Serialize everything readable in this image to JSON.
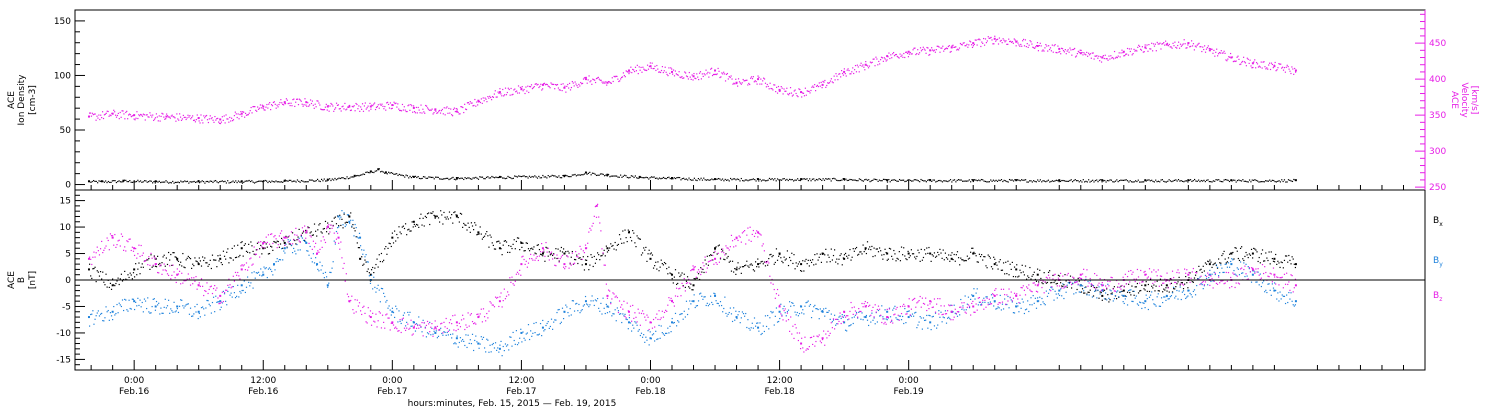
{
  "chart_data": [
    {
      "type": "scatter",
      "panel": "top",
      "ylabel_left_lines": [
        "ACE",
        "Ion Density",
        "[cm-3]"
      ],
      "ylabel_right_lines": [
        "ACE",
        "Velocity",
        "[km/s]"
      ],
      "ylim_left": [
        -5,
        160
      ],
      "yticks_left": [
        "0",
        "50",
        "100",
        "150"
      ],
      "ylim_right": [
        246,
        496
      ],
      "yticks_right": [
        "250",
        "300",
        "350",
        "400",
        "450"
      ],
      "colors": {
        "density": "#000000",
        "velocity": "#e61ee6"
      },
      "series": [
        {
          "axis": "left",
          "color": "#000000",
          "x_hours": [
            -4.2,
            -3,
            -1,
            2,
            6,
            10,
            14,
            18,
            20.5,
            22,
            22.7,
            23.4,
            26,
            30,
            34,
            40,
            42,
            44,
            47,
            50,
            54,
            58,
            62,
            66,
            70,
            74,
            78,
            82,
            86,
            90,
            94,
            98,
            102,
            108
          ],
          "values": [
            3,
            3,
            3.5,
            3,
            3,
            3,
            3.5,
            4.5,
            8,
            12,
            14,
            11,
            7,
            6,
            7,
            8,
            11,
            9,
            7,
            6,
            5,
            5,
            5,
            5,
            4,
            4,
            4,
            4,
            4,
            4,
            4,
            4,
            4,
            4
          ]
        },
        {
          "axis": "right",
          "color": "#e61ee6",
          "x_hours": [
            -4.2,
            -2,
            0,
            3,
            6,
            8,
            10,
            12,
            14,
            16,
            18,
            20,
            22,
            24,
            26,
            28,
            30,
            32,
            34,
            36,
            38,
            40,
            42,
            44,
            46,
            48,
            50,
            52,
            54,
            56,
            58,
            60,
            62,
            64,
            66,
            68,
            70,
            72,
            74,
            76,
            78,
            80,
            82,
            84,
            86,
            88,
            90,
            92,
            94,
            96,
            98,
            100,
            102,
            104,
            106,
            108
          ],
          "values": [
            348,
            352,
            350,
            348,
            346,
            344,
            352,
            362,
            368,
            368,
            362,
            362,
            362,
            364,
            360,
            358,
            355,
            370,
            382,
            386,
            392,
            388,
            400,
            395,
            412,
            418,
            410,
            404,
            412,
            395,
            400,
            385,
            382,
            392,
            410,
            420,
            432,
            438,
            440,
            444,
            450,
            456,
            452,
            446,
            442,
            436,
            430,
            438,
            444,
            448,
            450,
            440,
            430,
            422,
            418,
            412
          ]
        }
      ]
    },
    {
      "type": "scatter",
      "panel": "bottom",
      "ylabel_lines": [
        "ACE",
        "B",
        "[nT]"
      ],
      "ylim": [
        -17,
        17
      ],
      "yticks": [
        "15",
        "10",
        "5",
        "0",
        "-5",
        "-10",
        "-15"
      ],
      "colors": {
        "Bx": "#000000",
        "By": "#1e82dc",
        "Bz": "#e61ee6"
      },
      "series": [
        {
          "name": "Bx",
          "color": "#000000",
          "x_hours": [
            -4.2,
            -2,
            0,
            2,
            4,
            6,
            8,
            10,
            12,
            14,
            16,
            18,
            20,
            21,
            22,
            24,
            26,
            28,
            30,
            32,
            34,
            36,
            38,
            40,
            42,
            44,
            46,
            48,
            50,
            52,
            54,
            56,
            58,
            60,
            62,
            64,
            66,
            68,
            70,
            72,
            74,
            76,
            78,
            80,
            82,
            84,
            86,
            88,
            90,
            92,
            94,
            96,
            98,
            100,
            102,
            104,
            106,
            108
          ],
          "values": [
            2,
            -1,
            2,
            4,
            4,
            3,
            4,
            6,
            6,
            7,
            9,
            10,
            12,
            4,
            1,
            8,
            11,
            12,
            12,
            9,
            6,
            7,
            5,
            5,
            3,
            6,
            9,
            4,
            1,
            -1,
            6,
            2,
            3,
            5,
            3,
            5,
            4,
            6,
            5,
            5,
            5,
            4,
            5,
            3,
            2,
            1,
            0,
            -1,
            -3,
            -2,
            -1,
            -1,
            0,
            3,
            5,
            5,
            4,
            3
          ]
        },
        {
          "name": "By",
          "color": "#1e82dc",
          "x_hours": [
            -4.2,
            -2,
            0,
            2,
            4,
            6,
            8,
            10,
            12,
            13,
            14,
            16,
            17,
            18,
            19,
            20,
            21,
            22,
            24,
            26,
            28,
            30,
            32,
            34,
            36,
            38,
            40,
            42,
            44,
            46,
            48,
            50,
            52,
            54,
            56,
            58,
            60,
            62,
            64,
            66,
            68,
            70,
            72,
            74,
            76,
            78,
            80,
            82,
            84,
            86,
            88,
            90,
            92,
            94,
            96,
            98,
            100,
            102,
            104,
            106,
            108
          ],
          "values": [
            -7,
            -6,
            -4,
            -5,
            -5,
            -6,
            -4,
            -1,
            1,
            3,
            6,
            7,
            3,
            -1,
            12,
            11,
            8,
            0,
            -6,
            -8,
            -10,
            -11,
            -12,
            -13,
            -10,
            -9,
            -6,
            -4,
            -5,
            -8,
            -11,
            -8,
            -4,
            -3,
            -7,
            -9,
            -6,
            -5,
            -6,
            -8,
            -7,
            -6,
            -7,
            -8,
            -6,
            -3,
            -4,
            -5,
            -4,
            -2,
            -1,
            -2,
            -3,
            -4,
            -3,
            -2,
            1,
            3,
            1,
            -2,
            -4
          ]
        },
        {
          "name": "Bz",
          "color": "#e61ee6",
          "x_hours": [
            -4.2,
            -2,
            0,
            2,
            4,
            6,
            8,
            10,
            12,
            14,
            16,
            17,
            18,
            19,
            20,
            22,
            24,
            26,
            28,
            30,
            32,
            34,
            36,
            38,
            40,
            42,
            43,
            44,
            46,
            48,
            50,
            52,
            54,
            56,
            58,
            60,
            62,
            64,
            66,
            68,
            70,
            72,
            74,
            76,
            78,
            80,
            82,
            84,
            86,
            88,
            90,
            92,
            94,
            96,
            98,
            100,
            102,
            104,
            106,
            108
          ],
          "values": [
            4,
            8,
            6,
            3,
            1,
            -1,
            -3,
            2,
            7,
            8,
            9,
            5,
            10,
            8,
            -4,
            -7,
            -8,
            -9,
            -9,
            -8,
            -7,
            -4,
            3,
            6,
            3,
            6,
            14,
            -3,
            -6,
            -8,
            -4,
            2,
            4,
            8,
            9,
            -5,
            -12,
            -11,
            -6,
            -5,
            -7,
            -5,
            -4,
            -6,
            -5,
            -3,
            -3,
            -1,
            0,
            1,
            -1,
            0,
            1,
            0,
            1,
            0,
            0,
            2,
            1,
            -1
          ]
        }
      ],
      "legend": [
        "Bx",
        "By",
        "Bz"
      ]
    }
  ],
  "x_axis": {
    "range_hours": [
      -5.5,
      120
    ],
    "ticks": [
      {
        "h": 0,
        "time": "0:00",
        "date": "Feb.16"
      },
      {
        "h": 12,
        "time": "12:00",
        "date": "Feb.16"
      },
      {
        "h": 24,
        "time": "0:00",
        "date": "Feb.17"
      },
      {
        "h": 36,
        "time": "12:00",
        "date": "Feb.17"
      },
      {
        "h": 48,
        "time": "0:00",
        "date": "Feb.18"
      },
      {
        "h": 60,
        "time": "12:00",
        "date": "Feb.18"
      },
      {
        "h": 72,
        "time": "0:00",
        "date": "Feb.19"
      }
    ],
    "label": "hours:minutes, Feb. 15, 2015 — Feb. 19, 2015"
  }
}
